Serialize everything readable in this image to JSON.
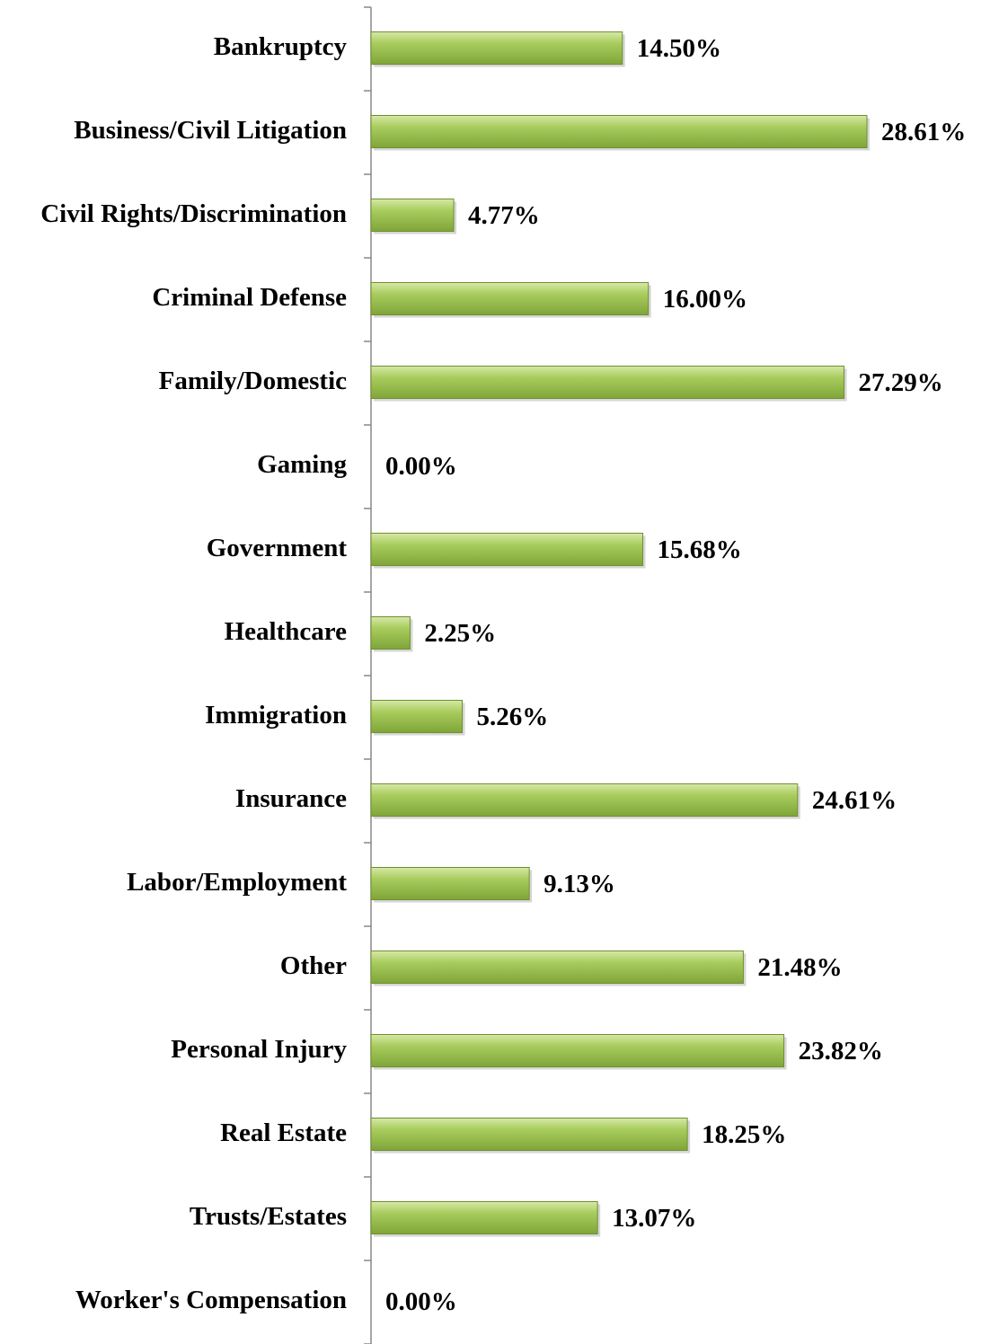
{
  "chart_data": {
    "type": "barh",
    "categories": [
      "Bankruptcy",
      "Business/Civil Litigation",
      "Civil Rights/Discrimination",
      "Criminal Defense",
      "Family/Domestic",
      "Gaming",
      "Government",
      "Healthcare",
      "Immigration",
      "Insurance",
      "Labor/Employment",
      "Other",
      "Personal Injury",
      "Real Estate",
      "Trusts/Estates",
      "Worker's Compensation"
    ],
    "values": [
      14.5,
      28.61,
      4.77,
      16.0,
      27.29,
      0.0,
      15.68,
      2.25,
      5.26,
      24.61,
      9.13,
      21.48,
      23.82,
      18.25,
      13.07,
      0.0
    ],
    "value_labels": [
      "14.50%",
      "28.61%",
      "4.77%",
      "16.00%",
      "27.29%",
      "0.00%",
      "15.68%",
      "2.25%",
      "5.26%",
      "24.61%",
      "9.13%",
      "21.48%",
      "23.82%",
      "18.25%",
      "13.07%",
      "0.00%"
    ],
    "color": "#9bbb59"
  }
}
